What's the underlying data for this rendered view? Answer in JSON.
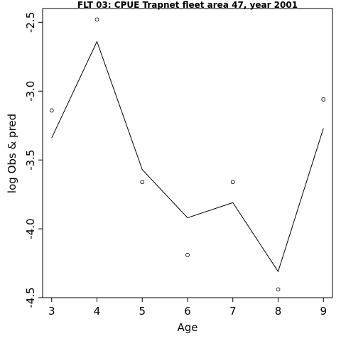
{
  "chart_data": {
    "type": "line",
    "title": "FLT 03: CPUE Trapnet fleet area 47, year 2001",
    "xlabel": "Age",
    "ylabel": "log Obs & pred",
    "x": [
      3,
      4,
      5,
      6,
      7,
      8,
      9
    ],
    "xticks": [
      "3",
      "4",
      "5",
      "6",
      "7",
      "8",
      "9"
    ],
    "yticks": [
      "-2.5",
      "-3.0",
      "-3.5",
      "-4.0",
      "-4.5"
    ],
    "yticks_values": [
      -2.5,
      -3.0,
      -3.5,
      -4.0,
      -4.5
    ],
    "xlim": [
      2.8,
      9.2
    ],
    "ylim": [
      -4.5,
      -2.4
    ],
    "grid": false,
    "series": [
      {
        "type": "line",
        "values": [
          -3.34,
          -2.64,
          -3.57,
          -3.92,
          -3.81,
          -4.31,
          -3.27
        ]
      },
      {
        "type": "scatter",
        "values": [
          -3.14,
          -2.48,
          -3.66,
          -4.19,
          -3.66,
          -4.44,
          -3.06
        ]
      }
    ]
  }
}
